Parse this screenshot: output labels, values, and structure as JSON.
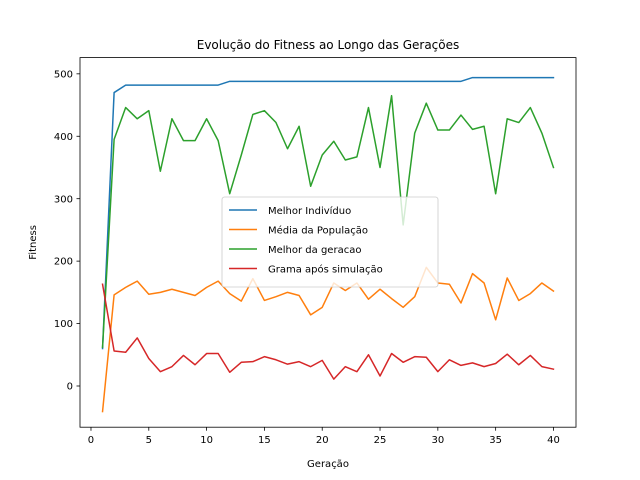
{
  "chart_data": {
    "type": "line",
    "title": "Evolução do Fitness ao Longo das Gerações",
    "xlabel": "Geração",
    "ylabel": "Fitness",
    "xlim": [
      -0.95,
      41.95
    ],
    "ylim": [
      -66,
      526
    ],
    "xticks": [
      0,
      5,
      10,
      15,
      20,
      25,
      30,
      35,
      40
    ],
    "yticks": [
      0,
      100,
      200,
      300,
      400,
      500
    ],
    "grid": false,
    "legend_position": "center",
    "x": [
      1,
      2,
      3,
      4,
      5,
      6,
      7,
      8,
      9,
      10,
      11,
      12,
      13,
      14,
      15,
      16,
      17,
      18,
      19,
      20,
      21,
      22,
      23,
      24,
      25,
      26,
      27,
      28,
      29,
      30,
      31,
      32,
      33,
      34,
      35,
      36,
      37,
      38,
      39,
      40
    ],
    "series": [
      {
        "name": "Melhor Indivíduo",
        "color": "#1f77b4",
        "values": [
          60,
          470,
          482,
          482,
          482,
          482,
          482,
          482,
          482,
          482,
          482,
          488,
          488,
          488,
          488,
          488,
          488,
          488,
          488,
          488,
          488,
          488,
          488,
          488,
          488,
          488,
          488,
          488,
          488,
          488,
          488,
          488,
          494,
          494,
          494,
          494,
          494,
          494,
          494,
          494
        ]
      },
      {
        "name": "Média da População",
        "color": "#ff7f0e",
        "values": [
          -41,
          146,
          158,
          168,
          147,
          150,
          155,
          150,
          145,
          158,
          168,
          148,
          136,
          172,
          137,
          143,
          150,
          145,
          114,
          126,
          165,
          153,
          165,
          139,
          155,
          140,
          126,
          143,
          190,
          165,
          163,
          133,
          180,
          165,
          106,
          173,
          137,
          148,
          165,
          152
        ]
      },
      {
        "name": "Melhor da geracao",
        "color": "#2ca02c",
        "values": [
          62,
          395,
          446,
          428,
          441,
          344,
          428,
          393,
          393,
          428,
          393,
          308,
          370,
          435,
          441,
          422,
          380,
          416,
          320,
          370,
          392,
          362,
          367,
          446,
          350,
          465,
          258,
          405,
          453,
          410,
          410,
          434,
          411,
          416,
          308,
          428,
          422,
          446,
          405,
          350
        ]
      },
      {
        "name": "Grama após simulação",
        "color": "#d62728",
        "values": [
          163,
          56,
          54,
          77,
          44,
          23,
          31,
          49,
          34,
          52,
          52,
          22,
          38,
          39,
          47,
          42,
          35,
          39,
          31,
          41,
          11,
          31,
          23,
          50,
          16,
          52,
          38,
          47,
          46,
          23,
          42,
          33,
          37,
          31,
          36,
          51,
          34,
          49,
          31,
          27
        ]
      }
    ]
  }
}
